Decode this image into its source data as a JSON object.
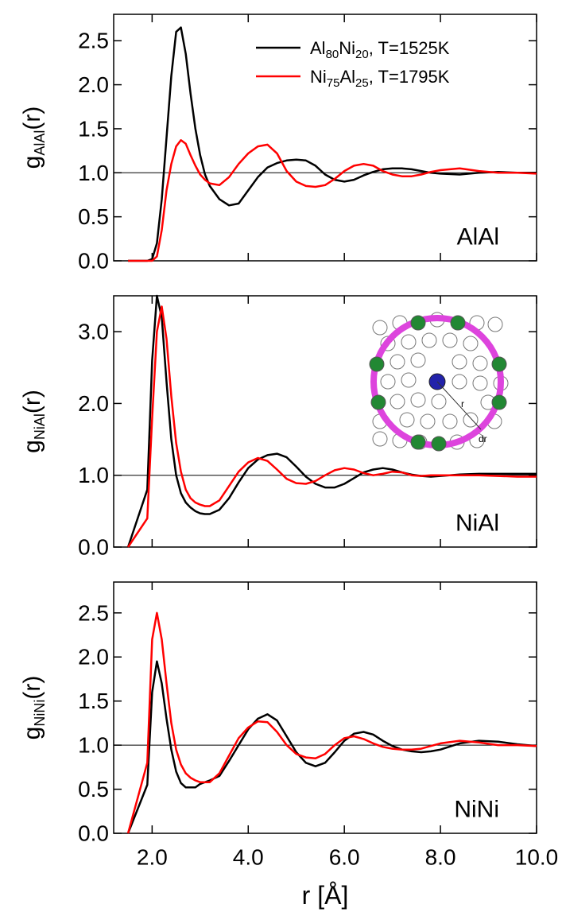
{
  "chart_data": [
    {
      "type": "line",
      "ylabel": [
        "g",
        {
          "sub": "AlAl"
        },
        "(r)"
      ],
      "annotation": "AlAl",
      "hline": 1.0,
      "legend": "upper right",
      "xlim": [
        1.2,
        10.0
      ],
      "xticks": [
        2,
        4,
        6,
        8,
        10
      ],
      "ylim": [
        0,
        2.8
      ],
      "yticks": [
        {
          "value": 0,
          "label": "0.0"
        },
        0.5,
        {
          "value": 1,
          "label": "1.0"
        },
        1.5,
        {
          "value": 2,
          "label": "2.0"
        },
        2.5
      ],
      "x": [
        1.5,
        1.9,
        2.0,
        2.1,
        2.2,
        2.3,
        2.4,
        2.5,
        2.6,
        2.7,
        2.8,
        2.9,
        3.0,
        3.1,
        3.2,
        3.4,
        3.6,
        3.8,
        4.0,
        4.2,
        4.4,
        4.6,
        4.8,
        5.0,
        5.2,
        5.4,
        5.6,
        5.8,
        6.0,
        6.2,
        6.4,
        6.6,
        6.8,
        7.0,
        7.2,
        7.4,
        7.6,
        7.8,
        8.0,
        8.4,
        8.8,
        9.2,
        9.6,
        10.0
      ],
      "series": [
        {
          "name": [
            "Al",
            {
              "sub": "80"
            },
            "Ni",
            {
              "sub": "20"
            },
            ", T=1525K"
          ],
          "color": "#000000",
          "values": [
            0,
            0,
            0.02,
            0.2,
            0.7,
            1.4,
            2.1,
            2.6,
            2.65,
            2.35,
            1.9,
            1.5,
            1.2,
            0.98,
            0.85,
            0.7,
            0.63,
            0.65,
            0.8,
            0.95,
            1.06,
            1.11,
            1.14,
            1.15,
            1.14,
            1.08,
            0.98,
            0.92,
            0.9,
            0.92,
            0.97,
            1.01,
            1.04,
            1.05,
            1.05,
            1.04,
            1.02,
            1.0,
            0.99,
            0.98,
            1.0,
            1.01,
            1.0,
            1.0
          ]
        },
        {
          "name": [
            "Ni",
            {
              "sub": "75"
            },
            "Al",
            {
              "sub": "25"
            },
            ", T=1795K"
          ],
          "color": "#ff0000",
          "values": [
            0,
            0,
            0,
            0.05,
            0.35,
            0.8,
            1.1,
            1.3,
            1.37,
            1.33,
            1.2,
            1.08,
            0.98,
            0.92,
            0.88,
            0.86,
            0.95,
            1.1,
            1.22,
            1.3,
            1.32,
            1.22,
            1.02,
            0.9,
            0.85,
            0.84,
            0.86,
            0.93,
            1.02,
            1.08,
            1.1,
            1.08,
            1.02,
            0.98,
            0.96,
            0.96,
            0.98,
            1.01,
            1.03,
            1.05,
            1.02,
            1.0,
            1.0,
            0.99
          ]
        }
      ]
    },
    {
      "type": "line",
      "ylabel": [
        "g",
        {
          "sub": "NiAl"
        },
        "(r)"
      ],
      "annotation": "NiAl",
      "hline": 1.0,
      "inset_labels": [
        "r",
        "dr"
      ],
      "xlim": [
        1.2,
        10.0
      ],
      "xticks": [
        2,
        4,
        6,
        8,
        10
      ],
      "ylim": [
        0,
        3.5
      ],
      "yticks": [
        {
          "value": 0,
          "label": "0.0"
        },
        {
          "value": 1,
          "label": "1.0"
        },
        {
          "value": 2,
          "label": "2.0"
        },
        {
          "value": 3,
          "label": "3.0"
        }
      ],
      "x": [
        1.5,
        1.9,
        2.0,
        2.1,
        2.2,
        2.3,
        2.4,
        2.5,
        2.6,
        2.7,
        2.8,
        2.9,
        3.0,
        3.1,
        3.2,
        3.4,
        3.6,
        3.8,
        4.0,
        4.2,
        4.4,
        4.6,
        4.8,
        5.0,
        5.2,
        5.4,
        5.6,
        5.8,
        6.0,
        6.2,
        6.4,
        6.6,
        6.8,
        7.0,
        7.2,
        7.4,
        7.6,
        7.8,
        8.0,
        8.4,
        8.8,
        9.2,
        9.6,
        10.0
      ],
      "series": [
        {
          "color": "#000000",
          "values": [
            0,
            0.8,
            2.6,
            3.5,
            3.2,
            2.3,
            1.5,
            1.0,
            0.75,
            0.62,
            0.55,
            0.5,
            0.47,
            0.46,
            0.46,
            0.52,
            0.68,
            0.9,
            1.1,
            1.22,
            1.28,
            1.3,
            1.25,
            1.12,
            0.98,
            0.88,
            0.83,
            0.83,
            0.88,
            0.96,
            1.04,
            1.08,
            1.1,
            1.08,
            1.04,
            1.01,
            0.99,
            0.98,
            0.99,
            1.01,
            1.02,
            1.02,
            1.02,
            1.02
          ]
        },
        {
          "color": "#ff0000",
          "values": [
            0,
            0.4,
            1.8,
            3.0,
            3.35,
            2.9,
            2.1,
            1.45,
            1.05,
            0.8,
            0.68,
            0.62,
            0.59,
            0.57,
            0.57,
            0.65,
            0.85,
            1.05,
            1.18,
            1.24,
            1.2,
            1.08,
            0.95,
            0.89,
            0.88,
            0.92,
            1.0,
            1.07,
            1.1,
            1.08,
            1.03,
            1.0,
            1.02,
            1.05,
            1.04,
            1.0,
            0.99,
            1.0,
            1.0,
            1.0,
            1.0,
            0.99,
            0.98,
            0.98
          ]
        }
      ]
    },
    {
      "type": "line",
      "ylabel": [
        "g",
        {
          "sub": "NiNi"
        },
        "(r)"
      ],
      "annotation": "NiNi",
      "hline": 1.0,
      "xlabel": "r [Å]",
      "xlim": [
        1.2,
        10.0
      ],
      "xticks": [
        {
          "value": 2,
          "label": "2.0"
        },
        {
          "value": 4,
          "label": "4.0"
        },
        {
          "value": 6,
          "label": "6.0"
        },
        {
          "value": 8,
          "label": "8.0"
        },
        {
          "value": 10,
          "label": "10.0"
        }
      ],
      "ylim": [
        0,
        2.85
      ],
      "yticks": [
        {
          "value": 0,
          "label": "0.0"
        },
        0.5,
        {
          "value": 1,
          "label": "1.0"
        },
        1.5,
        {
          "value": 2,
          "label": "2.0"
        },
        2.5
      ],
      "x": [
        1.5,
        1.9,
        2.0,
        2.1,
        2.2,
        2.3,
        2.4,
        2.5,
        2.6,
        2.7,
        2.8,
        2.9,
        3.0,
        3.1,
        3.2,
        3.4,
        3.6,
        3.8,
        4.0,
        4.2,
        4.4,
        4.6,
        4.8,
        5.0,
        5.2,
        5.4,
        5.6,
        5.8,
        6.0,
        6.2,
        6.4,
        6.6,
        6.8,
        7.0,
        7.2,
        7.4,
        7.6,
        7.8,
        8.0,
        8.4,
        8.8,
        9.2,
        9.6,
        10.0
      ],
      "series": [
        {
          "color": "#000000",
          "values": [
            0,
            0.55,
            1.6,
            1.95,
            1.7,
            1.3,
            0.95,
            0.7,
            0.57,
            0.52,
            0.52,
            0.52,
            0.56,
            0.58,
            0.6,
            0.65,
            0.82,
            1.0,
            1.18,
            1.3,
            1.35,
            1.28,
            1.1,
            0.92,
            0.8,
            0.76,
            0.8,
            0.92,
            1.05,
            1.13,
            1.15,
            1.12,
            1.05,
            0.99,
            0.95,
            0.93,
            0.92,
            0.93,
            0.95,
            1.02,
            1.05,
            1.04,
            1.01,
            0.99
          ]
        },
        {
          "color": "#ff0000",
          "values": [
            0,
            0.8,
            2.2,
            2.5,
            2.2,
            1.7,
            1.25,
            0.95,
            0.78,
            0.68,
            0.63,
            0.6,
            0.58,
            0.58,
            0.58,
            0.68,
            0.88,
            1.08,
            1.2,
            1.27,
            1.26,
            1.15,
            1.0,
            0.9,
            0.86,
            0.85,
            0.9,
            1.0,
            1.08,
            1.1,
            1.07,
            1.02,
            0.98,
            0.96,
            0.95,
            0.95,
            0.96,
            0.99,
            1.02,
            1.05,
            1.03,
            1.0,
            1.0,
            0.99
          ]
        }
      ]
    }
  ]
}
